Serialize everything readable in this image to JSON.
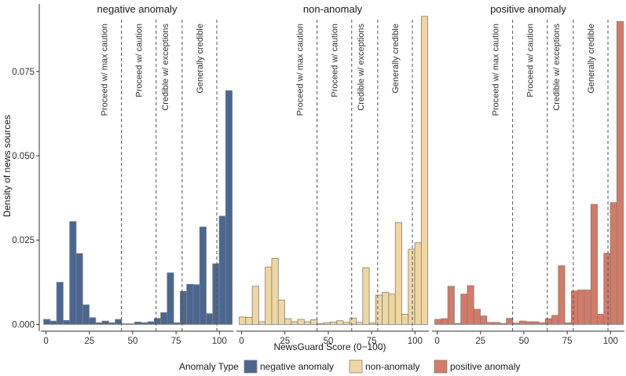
{
  "chart_data": {
    "type": "bar",
    "subtype": "faceted-histogram",
    "ylabel": "Density of news sources",
    "xlabel": "NewsGuard Score (0−100)",
    "xlim": [
      -3,
      108
    ],
    "ylim": [
      -0.002,
      0.095
    ],
    "xticks": [
      0,
      25,
      50,
      75,
      100
    ],
    "yticks": [
      0.0,
      0.025,
      0.05,
      0.075
    ],
    "ytick_labels": [
      "0.000",
      "0.025",
      "0.050",
      "0.075"
    ],
    "bin_width": 3.75,
    "bin_centers": [
      0.5,
      4.25,
      8.0,
      11.75,
      15.5,
      19.25,
      23.0,
      26.75,
      30.5,
      34.25,
      38.0,
      41.75,
      45.5,
      49.25,
      53.0,
      56.75,
      60.5,
      64.25,
      68.0,
      71.75,
      75.5,
      79.25,
      83.0,
      86.75,
      90.5,
      94.25,
      98.0,
      101.75,
      105.5
    ],
    "thresholds": [
      {
        "x": 43.5,
        "label": "Proceed w/ max caution"
      },
      {
        "x": 63.5,
        "label": "Proceed w/ caution"
      },
      {
        "x": 78.5,
        "label": "Credible w/ exceptions"
      },
      {
        "x": 98.5,
        "label": "Generally credible"
      }
    ],
    "series": [
      {
        "name": "negative anomaly",
        "color": "#4a6791",
        "values": [
          0.0015,
          0.001,
          0.0125,
          0.0012,
          0.0305,
          0.021,
          0.0058,
          0.002,
          0.0005,
          0.001,
          0.0005,
          0.0015,
          0.0002,
          0.0002,
          0.0007,
          0.0005,
          0.0008,
          0.0018,
          0.0035,
          0.0153,
          0.0005,
          0.0098,
          0.0119,
          0.0118,
          0.0289,
          0.0032,
          0.018,
          0.0321,
          0.0693
        ]
      },
      {
        "name": "non-anomaly",
        "color": "#f0d7a1",
        "values": [
          0.0022,
          0.0021,
          0.0113,
          0.0008,
          0.017,
          0.0196,
          0.0072,
          0.0017,
          0.0008,
          0.0015,
          0.0008,
          0.0014,
          0.0002,
          0.0005,
          0.0007,
          0.0011,
          0.0006,
          0.0019,
          0.0006,
          0.0168,
          0.0005,
          0.0087,
          0.0095,
          0.009,
          0.0302,
          0.003,
          0.0223,
          0.0242,
          0.0913
        ]
      },
      {
        "name": "positive anomaly",
        "color": "#d47a66",
        "values": [
          0.0015,
          0.0017,
          0.0113,
          0.0003,
          0.009,
          0.0115,
          0.0045,
          0.0025,
          0.0006,
          0.0006,
          0.0003,
          0.0018,
          0.0004,
          0.001,
          0.0008,
          0.0008,
          0.0005,
          0.0017,
          0.0027,
          0.0174,
          0.0005,
          0.0099,
          0.0102,
          0.0102,
          0.0356,
          0.003,
          0.0211,
          0.0361,
          0.0898
        ]
      }
    ],
    "legend": {
      "title": "Anomaly Type",
      "position": "bottom",
      "items": [
        "negative anomaly",
        "non-anomaly",
        "positive anomaly"
      ]
    }
  }
}
